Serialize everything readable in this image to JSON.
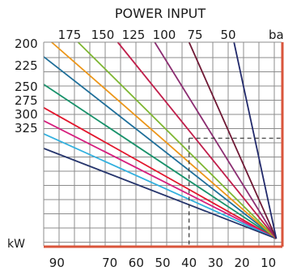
{
  "chart_data": {
    "type": "line",
    "title": "POWER INPUT",
    "top_unit": "bar",
    "bottom_unit": "kW",
    "top_ticks": [
      "175",
      "150",
      "125",
      "100",
      "75",
      "50"
    ],
    "left_ticks": [
      "200",
      "225",
      "250",
      "275",
      "300",
      "325"
    ],
    "x_ticks": [
      "90",
      "70",
      "60",
      "50",
      "40",
      "30",
      "20",
      "10"
    ],
    "xlim": [
      95,
      5
    ],
    "ylim": [
      0,
      14
    ],
    "grid": true,
    "axis_color": "#d9553b",
    "grid_color": "#8c8c8c",
    "series": [
      {
        "label": "200",
        "color": "#1f6f9a",
        "start_y": 13
      },
      {
        "label": "225",
        "color": "#19926b",
        "start_y": 11.1
      },
      {
        "label": "250",
        "color": "#e2172d",
        "start_y": 9.5
      },
      {
        "label": "275",
        "color": "#d61f7e",
        "start_y": 8.6
      },
      {
        "label": "300",
        "color": "#32b0de",
        "start_y": 7.7
      },
      {
        "label": "325",
        "color": "#27366d",
        "start_y": 6.7
      },
      {
        "label": "175",
        "color": "#ec9619",
        "start_x": 92
      },
      {
        "label": "150",
        "color": "#7eb632",
        "start_x": 82
      },
      {
        "label": "125",
        "color": "#c01f4b",
        "start_x": 67
      },
      {
        "label": "100",
        "color": "#8b2d71",
        "start_x": 53
      },
      {
        "label": "75",
        "color": "#6f1935",
        "start_x": 40
      },
      {
        "label": "50",
        "color": "#222a6b",
        "start_x": 23
      }
    ],
    "guide": {
      "x": 40,
      "y": 7.4
    }
  }
}
